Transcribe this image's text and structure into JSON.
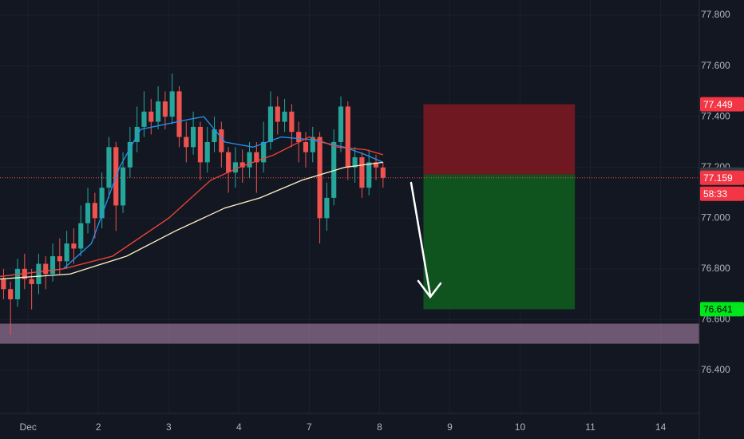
{
  "chart_data": {
    "type": "candlestick",
    "x": [
      -0.35,
      -0.25,
      -0.15,
      -0.05,
      0.05,
      0.15,
      0.25,
      0.35,
      0.45,
      0.55,
      0.65,
      0.75,
      0.85,
      0.95,
      1.05,
      1.15,
      1.25,
      1.35,
      1.45,
      1.55,
      1.65,
      1.75,
      1.85,
      1.95,
      2.05,
      2.15,
      2.25,
      2.35,
      2.45,
      2.55,
      2.65,
      2.75,
      2.85,
      2.95,
      3.05,
      3.15,
      3.25,
      3.35,
      3.45,
      3.55,
      3.65,
      3.75,
      3.85,
      3.95,
      4.05,
      4.15,
      4.25,
      4.35,
      4.45,
      4.55,
      4.65,
      4.75,
      4.85,
      4.95,
      5.05
    ],
    "open": [
      76.76,
      76.72,
      76.68,
      76.8,
      76.76,
      76.74,
      76.82,
      76.78,
      76.85,
      76.83,
      76.9,
      76.88,
      76.98,
      77.06,
      77.0,
      77.12,
      77.28,
      77.05,
      77.2,
      77.3,
      77.36,
      77.42,
      77.38,
      77.46,
      77.4,
      77.5,
      77.32,
      77.28,
      77.36,
      77.22,
      77.3,
      77.35,
      77.26,
      77.18,
      77.22,
      77.2,
      77.26,
      77.22,
      77.3,
      77.44,
      77.38,
      77.42,
      77.34,
      77.3,
      77.26,
      77.32,
      77.0,
      77.08,
      77.3,
      77.44,
      77.2,
      77.24,
      77.12,
      77.22,
      77.2
    ],
    "high": [
      76.8,
      76.75,
      76.84,
      76.86,
      76.8,
      76.86,
      76.85,
      76.9,
      76.92,
      76.95,
      76.96,
      77.05,
      77.12,
      77.1,
      77.18,
      77.32,
      77.3,
      77.26,
      77.36,
      77.44,
      77.5,
      77.47,
      77.52,
      77.5,
      77.57,
      77.52,
      77.38,
      77.42,
      77.38,
      77.36,
      77.4,
      77.38,
      77.28,
      77.28,
      77.27,
      77.3,
      77.3,
      77.38,
      77.5,
      77.48,
      77.47,
      77.45,
      77.38,
      77.34,
      77.36,
      77.34,
      77.14,
      77.35,
      77.48,
      77.46,
      77.28,
      77.26,
      77.27,
      77.25,
      77.22
    ],
    "low": [
      76.68,
      76.54,
      76.65,
      76.72,
      76.64,
      76.7,
      76.72,
      76.75,
      76.78,
      76.8,
      76.82,
      76.85,
      76.94,
      76.92,
      76.96,
      77.08,
      76.95,
      77.02,
      77.16,
      77.26,
      77.32,
      77.33,
      77.35,
      77.35,
      77.37,
      77.28,
      77.22,
      77.25,
      77.15,
      77.18,
      77.26,
      77.2,
      77.1,
      77.12,
      77.14,
      77.16,
      77.1,
      77.18,
      77.27,
      77.33,
      77.34,
      77.28,
      77.22,
      77.2,
      77.22,
      76.9,
      76.95,
      77.05,
      77.26,
      77.15,
      77.14,
      77.08,
      77.09,
      77.15,
      77.12
    ],
    "close": [
      76.72,
      76.68,
      76.8,
      76.76,
      76.74,
      76.82,
      76.78,
      76.85,
      76.83,
      76.9,
      76.88,
      76.98,
      77.06,
      77.0,
      77.12,
      77.28,
      77.05,
      77.2,
      77.3,
      77.36,
      77.42,
      77.38,
      77.46,
      77.4,
      77.5,
      77.32,
      77.28,
      77.36,
      77.22,
      77.3,
      77.35,
      77.26,
      77.18,
      77.22,
      77.2,
      77.26,
      77.22,
      77.3,
      77.44,
      77.38,
      77.42,
      77.34,
      77.3,
      77.26,
      77.32,
      77.0,
      77.08,
      77.3,
      77.44,
      77.2,
      77.24,
      77.12,
      77.22,
      77.2,
      77.159
    ],
    "colors": {
      "up": "#26a69a",
      "down": "#ef5350"
    },
    "lines": [
      {
        "color": "#2196f3",
        "x": [
          -0.4,
          0.5,
          0.9,
          1.3,
          1.6,
          2.3,
          2.5,
          2.8,
          3.2,
          3.6,
          4.0,
          4.5,
          4.8,
          5.05
        ],
        "values": [
          76.77,
          76.8,
          76.9,
          77.2,
          77.35,
          77.39,
          77.4,
          77.3,
          77.28,
          77.32,
          77.31,
          77.28,
          77.25,
          77.22
        ]
      },
      {
        "color": "#f44336",
        "x": [
          -0.4,
          0.5,
          1.2,
          2.0,
          2.6,
          3.0,
          3.5,
          4.0,
          4.4,
          4.8,
          5.05
        ],
        "values": [
          76.77,
          76.8,
          76.85,
          77.0,
          77.15,
          77.2,
          77.25,
          77.32,
          77.28,
          77.27,
          77.25
        ]
      },
      {
        "color": "#fff3c4",
        "x": [
          -0.4,
          0.6,
          1.4,
          2.1,
          2.8,
          3.3,
          3.9,
          4.5,
          5.05
        ],
        "values": [
          76.76,
          76.78,
          76.85,
          76.95,
          77.04,
          77.08,
          77.15,
          77.2,
          77.22
        ]
      }
    ],
    "position": {
      "x_start": 5.625,
      "x_end": 7.78,
      "stop": 77.449,
      "entry": 77.172,
      "target": 76.641
    },
    "zone": {
      "top": 76.584,
      "bottom": 76.505
    },
    "last_price": 77.159,
    "countdown": "58:33",
    "xlim": [
      -0.4,
      9.55
    ],
    "ylim": [
      76.23,
      77.86
    ],
    "xticks": [
      {
        "value": 0,
        "label": "Dec"
      },
      {
        "value": 1,
        "label": "2"
      },
      {
        "value": 2,
        "label": "3"
      },
      {
        "value": 3,
        "label": "4"
      },
      {
        "value": 4,
        "label": "7"
      },
      {
        "value": 5,
        "label": "8"
      },
      {
        "value": 6,
        "label": "9"
      },
      {
        "value": 7,
        "label": "10"
      },
      {
        "value": 8,
        "label": "11"
      },
      {
        "value": 9,
        "label": "14"
      }
    ],
    "yticks": [
      {
        "value": 76.4,
        "label": "76.400"
      },
      {
        "value": 76.6,
        "label": "76.600"
      },
      {
        "value": 76.8,
        "label": "76.800"
      },
      {
        "value": 77.0,
        "label": "77.000"
      },
      {
        "value": 77.2,
        "label": "77.200"
      },
      {
        "value": 77.4,
        "label": "77.400"
      },
      {
        "value": 77.6,
        "label": "77.600"
      },
      {
        "value": 77.8,
        "label": "77.800"
      }
    ],
    "grid": true
  }
}
